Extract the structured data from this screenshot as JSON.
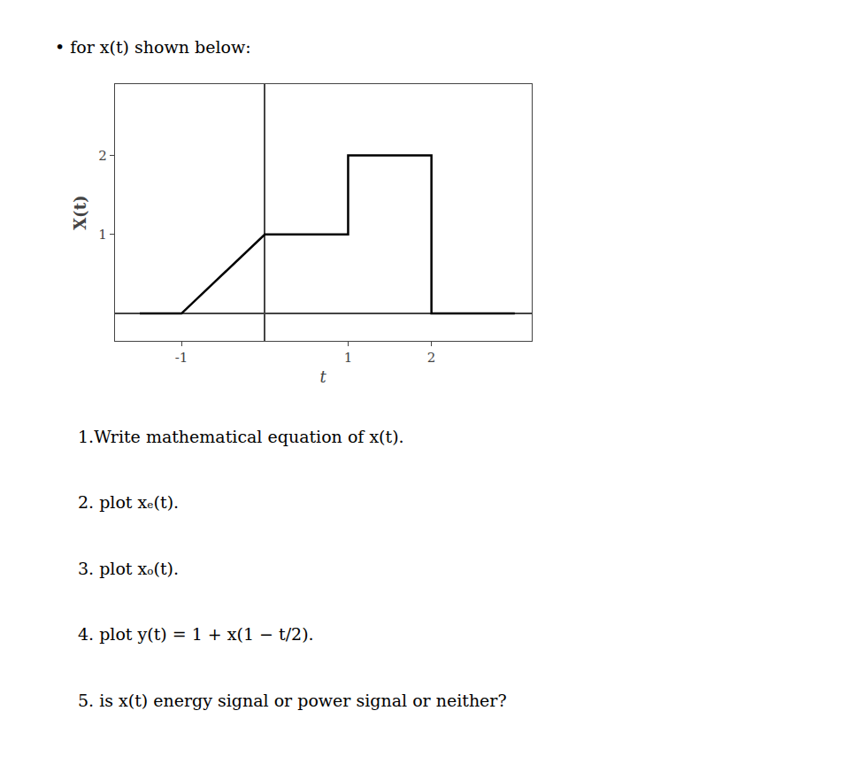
{
  "chart_data": {
    "type": "line",
    "xlabel": "t",
    "ylabel": "X(t)",
    "x": [
      -1.5,
      -1,
      0,
      1,
      1,
      2,
      2,
      3.0
    ],
    "values": [
      0,
      0,
      1,
      1,
      2,
      2,
      0,
      0
    ],
    "color": "#000000",
    "xlim": [
      -1.8,
      3.2
    ],
    "xticks": [
      -1,
      1,
      2
    ],
    "ylim": [
      -0.35,
      2.9
    ],
    "yticks": [
      1,
      2
    ],
    "grid": false,
    "annotations": [
      "• for x(t) shown below:",
      "1.Write mathematical equation of x(t).",
      "2. plot xₑ(t).",
      "3. plot xₒ(t).",
      "4. plot y(t) = 1 + x(1 − t/2).",
      "5. is x(t) energy signal or power signal or neither?"
    ]
  }
}
